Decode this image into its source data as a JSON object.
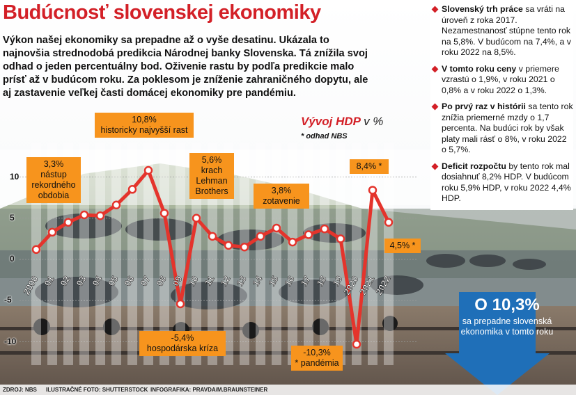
{
  "title": "Budúcnosť slovenskej ekonomiky",
  "intro": "Výkon našej ekonomiky sa prepadne až o vyše desatinu. Ukázala to najnovšia strednodobá predikcia Národnej banky Slovenska. Tá znížila svoj odhad o jeden percentuálny bod. Oživenie rastu by podľa predikcie malo prísť až v budúcom roku. Za poklesom je zníženie zahraničného dopytu, ale aj zastavenie veľkej časti domácej ekonomiky pre pandémiu.",
  "chart_heading": {
    "main": "Vývoj HDP",
    "unit": "v %",
    "note": "* odhad NBS"
  },
  "colors": {
    "accent": "#d32027",
    "line": "#e4342c",
    "callout": "#f7941d",
    "arrow": "#1f6fb8"
  },
  "chart_data": {
    "type": "line",
    "x": [
      "2000",
      "01",
      "02",
      "03",
      "04",
      "05",
      "06",
      "07",
      "08",
      "09",
      "10",
      "11",
      "12",
      "13",
      "14",
      "15",
      "16",
      "17",
      "18",
      "19",
      "2020",
      "2021",
      "2022"
    ],
    "series": [
      {
        "values": [
          1.2,
          3.3,
          4.5,
          5.4,
          5.3,
          6.6,
          8.5,
          10.8,
          5.6,
          -5.4,
          5.0,
          2.8,
          1.7,
          1.5,
          2.8,
          3.8,
          2.1,
          3.0,
          3.7,
          2.5,
          -10.3,
          8.4,
          4.5
        ]
      }
    ],
    "ylim": [
      -12,
      14
    ],
    "yticks": [
      -10,
      -5,
      0,
      5,
      10
    ],
    "grid": true,
    "annotations": [
      {
        "pct": "3,3%",
        "text": "nástup rekordného obdobia"
      },
      {
        "pct": "10,8%",
        "text": "historicky najvyšší rast"
      },
      {
        "pct": "5,6%",
        "text": "krach Lehman Brothers"
      },
      {
        "pct": "-5,4%",
        "text": "hospodárska kríza"
      },
      {
        "pct": "3,8%",
        "text": "zotavenie"
      },
      {
        "pct": "8,4%",
        "text": "*"
      },
      {
        "pct": "4,5%",
        "text": "*"
      },
      {
        "pct": "-10,3%",
        "text": "* pandémia"
      }
    ]
  },
  "sidebar": [
    {
      "bold": "Slovenský trh práce",
      "text": " sa vráti na úroveň z roka 2017. Nezamestnanosť stúpne tento rok na 5,8%. V budúcom na 7,4%, a v roku 2022 na 8,5%."
    },
    {
      "bold": "V tomto roku ceny",
      "text": " v priemere vzrastú o 1,9%, v roku 2021 o 0,8% a v roku 2022 o 1,3%."
    },
    {
      "bold": "Po prvý raz v histórii",
      "text": " sa tento rok znížia priemerné mzdy o 1,7 percenta. Na budúci rok by však platy mali rásť o 8%, v roku 2022 o 5,7%."
    },
    {
      "bold": "Deficit rozpočtu",
      "text": " by tento rok mal dosiahnuť 8,2% HDP. V budúcom roku 5,9% HDP, v roku 2022 4,4% HDP."
    }
  ],
  "arrow": {
    "value": "O 10,3%",
    "text": "sa prepadne slovenská ekonomika v tomto roku"
  },
  "footer": {
    "source": "ZDROJ: NBS",
    "photo": "ILUSTRAČNÉ FOTO: SHUTTERSTOCK",
    "graphics": "INFOGRAFIKA: PRAVDA/M.BRAUNSTEINER"
  }
}
